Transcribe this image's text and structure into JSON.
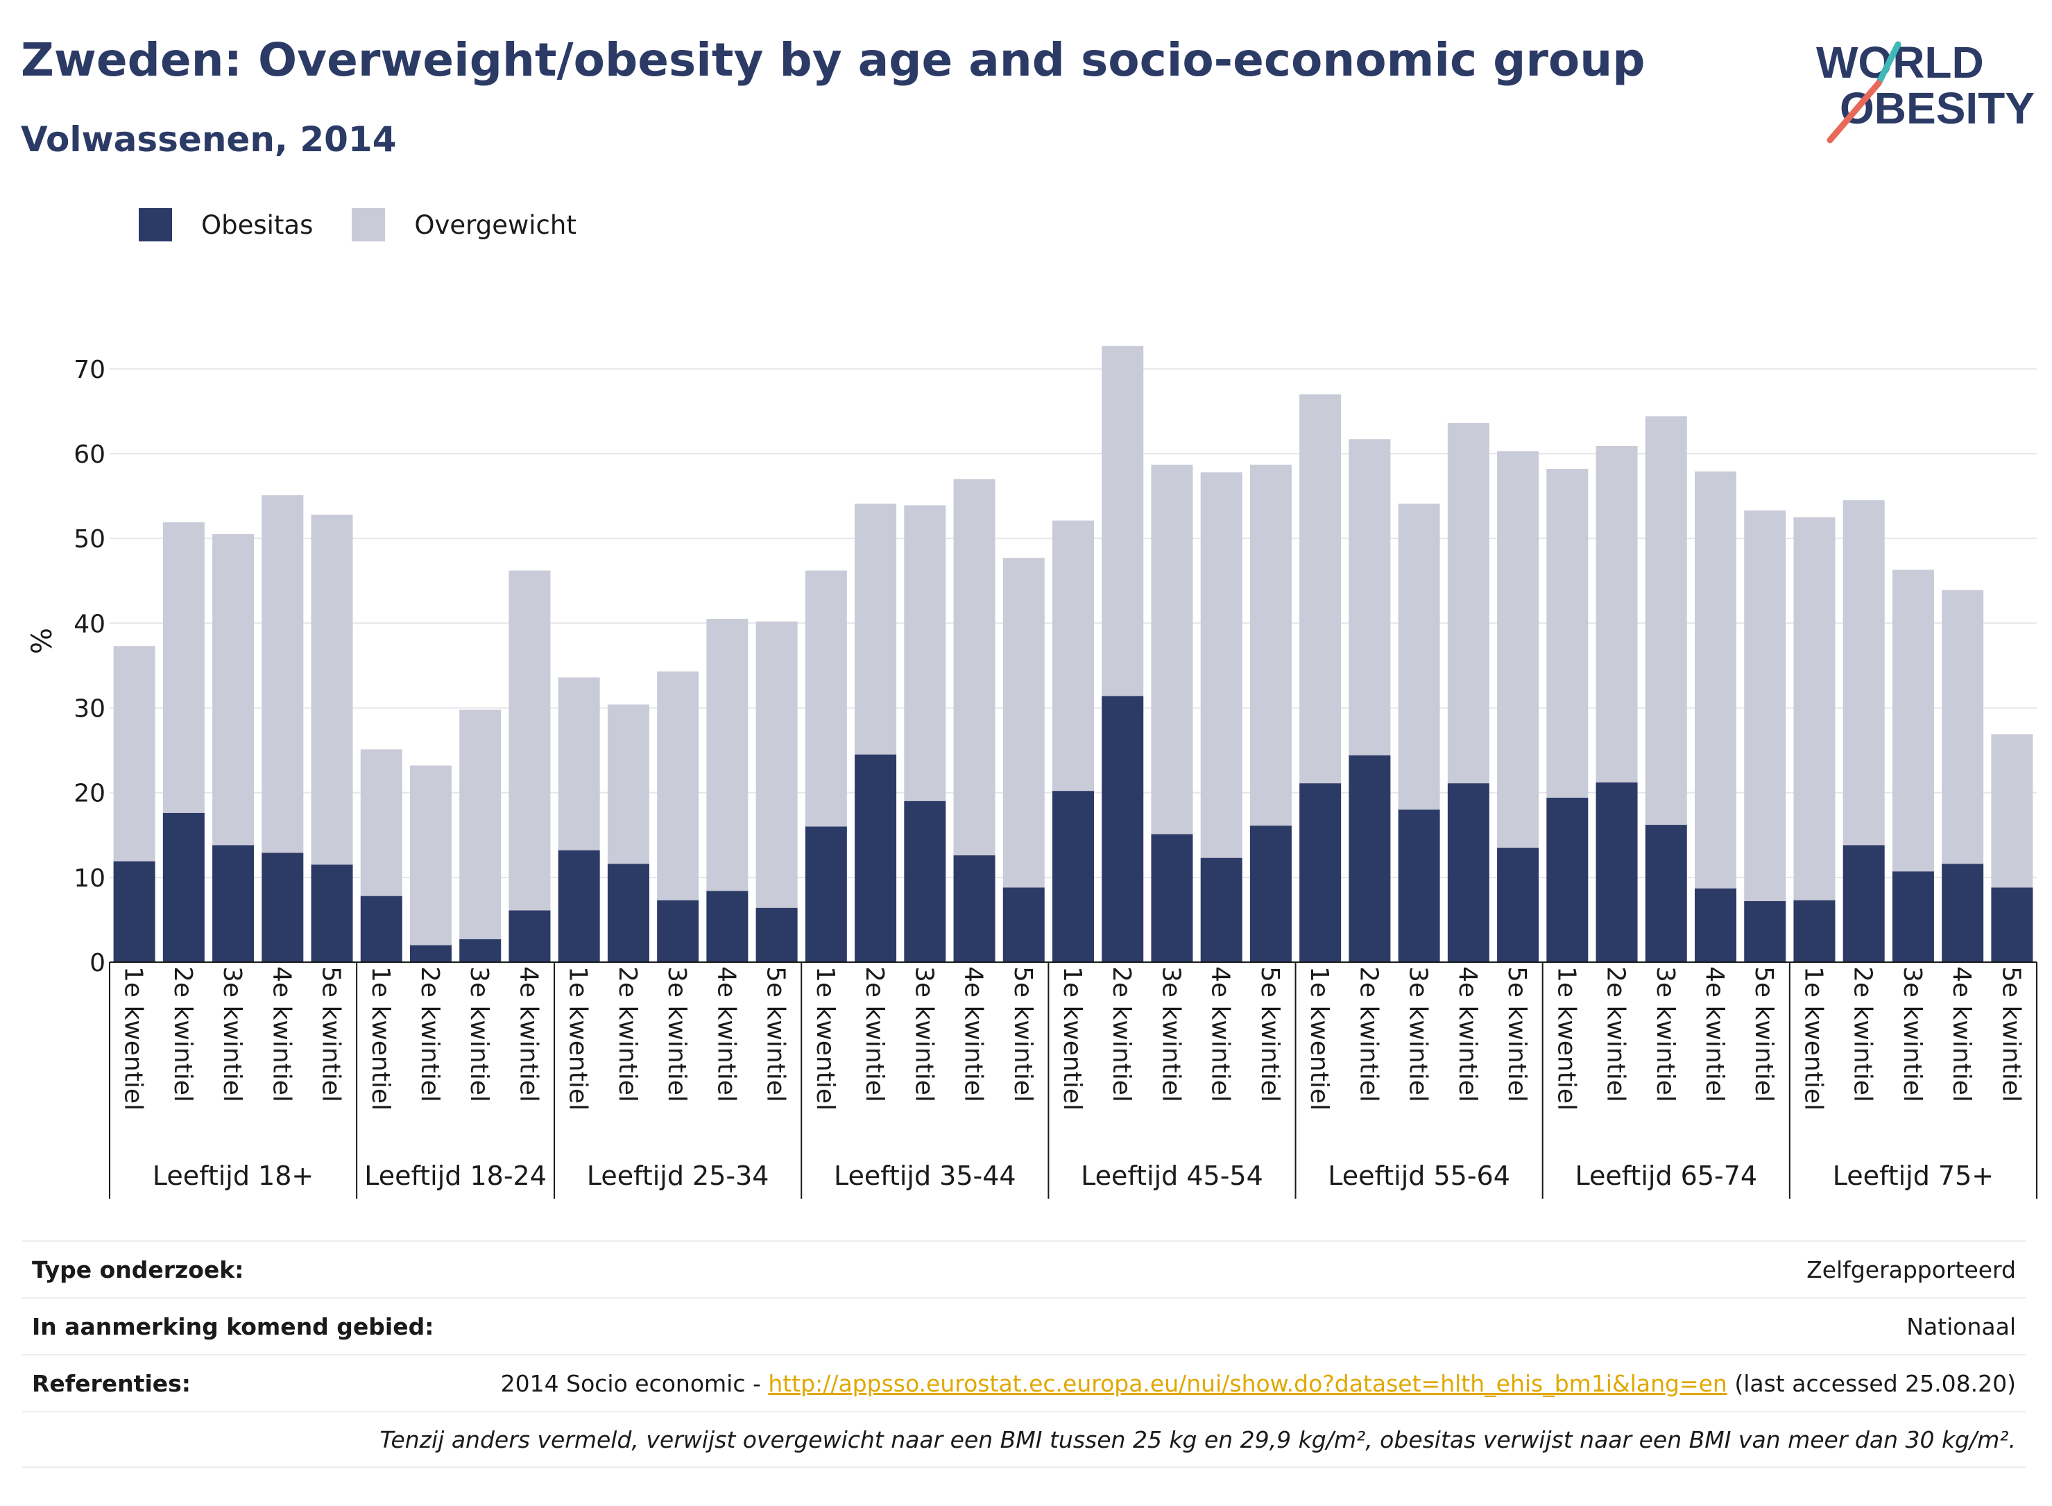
{
  "header": {
    "title": "Zweden: Overweight/obesity by age and socio-economic group",
    "subtitle": "Volwassenen, 2014"
  },
  "logo": {
    "line1": "WORLD",
    "line2": "OBESITY"
  },
  "colors": {
    "obesity": "#2c3a66",
    "overweight": "#c9cbd8",
    "accent_teal": "#3fb8b8",
    "accent_coral": "#e8685a",
    "link": "#e0a800"
  },
  "legend": {
    "obesity_label": "Obesitas",
    "overweight_label": "Overgewicht"
  },
  "chart_data": {
    "type": "bar",
    "stacked": true,
    "ylabel": "%",
    "ylim": [
      0,
      72.6
    ],
    "yticks": [
      0,
      10,
      20,
      30,
      40,
      50,
      60,
      70
    ],
    "grid": true,
    "legend_position": "top-left",
    "groups": [
      {
        "label": "Leeftijd 18+",
        "categories": [
          "1e kwentiel",
          "2e kwintiel",
          "3e kwintiel",
          "4e kwintiel",
          "5e kwintiel"
        ]
      },
      {
        "label": "Leeftijd 18-24",
        "categories": [
          "1e kwentiel",
          "2e kwintiel",
          "3e kwintiel",
          "4e kwintiel"
        ]
      },
      {
        "label": "Leeftijd 25-34",
        "categories": [
          "1e kwentiel",
          "2e kwintiel",
          "3e kwintiel",
          "4e kwintiel",
          "5e kwintiel"
        ]
      },
      {
        "label": "Leeftijd 35-44",
        "categories": [
          "1e kwentiel",
          "2e kwintiel",
          "3e kwintiel",
          "4e kwintiel",
          "5e kwintiel"
        ]
      },
      {
        "label": "Leeftijd 45-54",
        "categories": [
          "1e kwentiel",
          "2e kwintiel",
          "3e kwintiel",
          "4e kwintiel",
          "5e kwintiel"
        ]
      },
      {
        "label": "Leeftijd 55-64",
        "categories": [
          "1e kwentiel",
          "2e kwintiel",
          "3e kwintiel",
          "4e kwintiel",
          "5e kwintiel"
        ]
      },
      {
        "label": "Leeftijd 65-74",
        "categories": [
          "1e kwentiel",
          "2e kwintiel",
          "3e kwintiel",
          "4e kwintiel",
          "5e kwintiel"
        ]
      },
      {
        "label": "Leeftijd 75+",
        "categories": [
          "1e kwentiel",
          "2e kwintiel",
          "3e kwintiel",
          "4e kwintiel",
          "5e kwintiel"
        ]
      }
    ],
    "series": [
      {
        "name": "Obesitas",
        "values": [
          11.9,
          17.6,
          13.8,
          12.9,
          11.5,
          7.8,
          2.0,
          2.7,
          6.1,
          13.2,
          11.6,
          7.3,
          8.4,
          6.4,
          16.0,
          24.5,
          19.0,
          12.6,
          8.8,
          20.2,
          31.4,
          15.1,
          12.3,
          16.1,
          21.1,
          24.4,
          18.0,
          21.1,
          13.5,
          19.4,
          21.2,
          16.2,
          8.7,
          7.2,
          7.3,
          13.8,
          10.7,
          11.6,
          8.8
        ]
      },
      {
        "name": "Overgewicht",
        "values": [
          25.4,
          34.3,
          36.7,
          42.2,
          41.3,
          17.3,
          21.2,
          27.1,
          40.1,
          20.4,
          18.8,
          27.0,
          32.1,
          33.8,
          30.2,
          29.6,
          34.9,
          44.4,
          38.9,
          31.9,
          41.3,
          43.6,
          45.5,
          42.6,
          45.9,
          37.3,
          36.1,
          42.5,
          46.8,
          38.8,
          39.7,
          48.2,
          49.2,
          46.1,
          45.2,
          40.7,
          35.6,
          32.3,
          18.1
        ]
      }
    ]
  },
  "info": {
    "rows": [
      {
        "label": "Type onderzoek:",
        "value": "Zelfgerapporteerd"
      },
      {
        "label": "In aanmerking komend gebied:",
        "value": "Nationaal"
      }
    ],
    "references": {
      "label": "Referenties:",
      "prefix": "2014 Socio economic - ",
      "link": "http://appsso.eurostat.ec.europa.eu/nui/show.do?dataset=hlth_ehis_bm1i&lang=en",
      "suffix": " (last accessed 25.08.20)"
    },
    "note": "Tenzij anders vermeld, verwijst overgewicht naar een BMI tussen 25 kg en 29,9 kg/m², obesitas verwijst naar een BMI van meer dan 30 kg/m²."
  }
}
